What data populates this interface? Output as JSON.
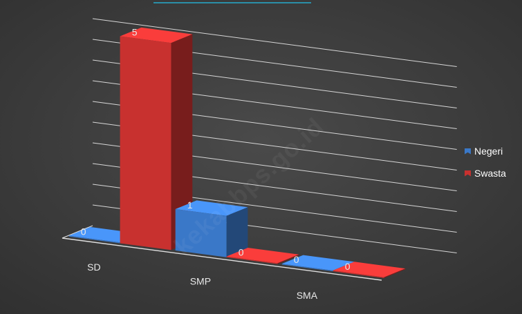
{
  "chart_data": {
    "type": "bar",
    "categories": [
      "SD",
      "SMP",
      "SMA"
    ],
    "series": [
      {
        "name": "Negeri",
        "values": [
          0,
          1,
          0
        ],
        "color": "#3a78c8"
      },
      {
        "name": "Swasta",
        "values": [
          5,
          0,
          0
        ],
        "color": "#c8312f"
      }
    ],
    "ylim": [
      0,
      5
    ],
    "grid": true,
    "legend": "right",
    "background": "#3d3d3d",
    "watermark": "kekabbps.go.id"
  }
}
